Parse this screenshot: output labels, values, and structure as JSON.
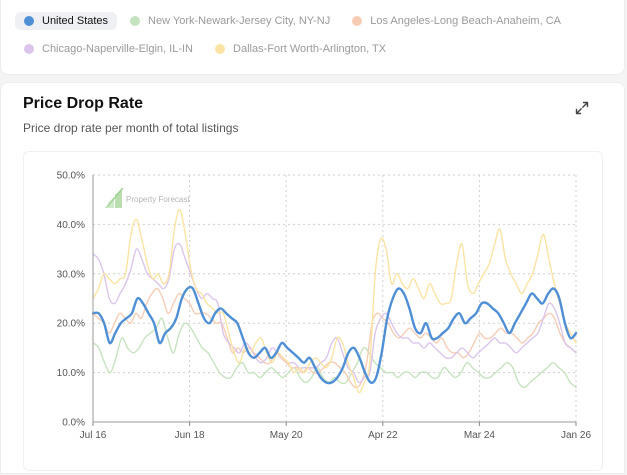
{
  "legend": {
    "items": [
      {
        "label": "United States",
        "color": "#4f8fd6",
        "active": true
      },
      {
        "label": "New York-Newark-Jersey City, NY-NJ",
        "color": "#c5e3bf",
        "active": false
      },
      {
        "label": "Los Angeles-Long Beach-Anaheim, CA",
        "color": "#f6cdb4",
        "active": false
      },
      {
        "label": "Chicago-Naperville-Elgin, IL-IN",
        "color": "#dcc5ec",
        "active": false
      },
      {
        "label": "Dallas-Fort Worth-Arlington, TX",
        "color": "#fbe3a3",
        "active": false
      }
    ]
  },
  "panel": {
    "title": "Price Drop Rate",
    "subtitle": "Price drop rate per month of total listings",
    "expand_icon": "expand-icon"
  },
  "watermark": "Property Forecast",
  "chart_data": {
    "type": "line",
    "ylim": [
      0,
      50
    ],
    "yticks": [
      "0.0%",
      "10.0%",
      "20.0%",
      "30.0%",
      "40.0%",
      "50.0%"
    ],
    "xticks": [
      "Jul 16",
      "Jun 18",
      "May 20",
      "Apr 22",
      "Mar 24",
      "Jan 26"
    ],
    "x_start": "Jul 16",
    "x_end": "Jan 26",
    "grid": true,
    "legend_position": "top",
    "series": [
      {
        "name": "New York-Newark-Jersey City, NY-NJ",
        "color": "#c5e3bf",
        "values": [
          16,
          15,
          12,
          10,
          13,
          17,
          15,
          14,
          15,
          17,
          18,
          19,
          21,
          17,
          14,
          18,
          20,
          19,
          17,
          15,
          14,
          12,
          10,
          9,
          9,
          11,
          12,
          10,
          10,
          9,
          10,
          11,
          10,
          9,
          10,
          11,
          9,
          8,
          9,
          11,
          9,
          8,
          9,
          8,
          8,
          10,
          12,
          15,
          14,
          12,
          11,
          10,
          10,
          9,
          10,
          10,
          9,
          10,
          10,
          9,
          9,
          11,
          10,
          9,
          10,
          12,
          11,
          10,
          9,
          9,
          10,
          11,
          12,
          11,
          8,
          7,
          8,
          9,
          10,
          11,
          12,
          11,
          10,
          8,
          7
        ]
      },
      {
        "name": "Los Angeles-Long Beach-Anaheim, CA",
        "color": "#f6cdb4",
        "values": [
          22,
          21,
          20,
          18,
          20,
          22,
          21,
          20,
          22,
          21,
          24,
          26,
          27,
          25,
          22,
          24,
          26,
          25,
          24,
          22,
          22,
          22,
          21,
          20,
          20,
          17,
          14,
          15,
          14,
          15,
          14,
          13,
          12,
          12,
          14,
          13,
          12,
          11,
          11,
          10,
          11,
          10,
          10,
          11,
          12,
          12,
          11,
          10,
          8,
          7,
          8,
          12,
          20,
          22,
          21,
          20,
          18,
          17,
          18,
          19,
          18,
          17,
          18,
          17,
          16,
          17,
          15,
          14,
          14,
          13,
          14,
          16,
          18,
          17,
          17,
          18,
          19,
          18,
          18,
          17,
          16,
          17,
          18,
          20,
          21,
          22,
          21,
          18,
          16,
          15,
          14
        ]
      },
      {
        "name": "Chicago-Naperville-Elgin, IL-IN",
        "color": "#dcc5ec",
        "values": [
          34,
          33,
          30,
          25,
          24,
          26,
          28,
          31,
          35,
          33,
          30,
          29,
          28,
          27,
          29,
          35,
          36,
          33,
          30,
          27,
          25,
          26,
          25,
          24,
          18,
          16,
          15,
          14,
          16,
          15,
          13,
          12,
          13,
          15,
          14,
          13,
          12,
          12,
          11,
          11,
          11,
          11,
          12,
          13,
          16,
          17,
          14,
          11,
          10,
          8,
          9,
          10,
          18,
          21,
          22,
          20,
          18,
          17,
          17,
          16,
          16,
          15,
          16,
          15,
          14,
          13,
          13,
          14,
          15,
          14,
          13,
          14,
          15,
          16,
          17,
          16,
          16,
          15,
          14,
          15,
          16,
          17,
          18,
          21,
          24,
          23,
          20,
          16,
          15,
          14
        ]
      },
      {
        "name": "Dallas-Fort Worth-Arlington, TX",
        "color": "#fbe3a3",
        "values": [
          25,
          27,
          30,
          29,
          28,
          29,
          30,
          38,
          41,
          37,
          32,
          29,
          30,
          28,
          30,
          39,
          43,
          38,
          31,
          27,
          26,
          24,
          23,
          22,
          22,
          18,
          14,
          12,
          15,
          14,
          16,
          17,
          14,
          12,
          14,
          13,
          12,
          10,
          11,
          10,
          12,
          13,
          12,
          11,
          13,
          17,
          16,
          12,
          9,
          6,
          8,
          12,
          30,
          37,
          35,
          28,
          30,
          28,
          27,
          29,
          27,
          25,
          28,
          26,
          24,
          24,
          25,
          32,
          36,
          28,
          26,
          28,
          30,
          32,
          36,
          39,
          33,
          30,
          28,
          26,
          28,
          30,
          34,
          38,
          33,
          28,
          24,
          20,
          18,
          16
        ]
      },
      {
        "name": "United States",
        "color": "#4f8fd6",
        "values": [
          22,
          22,
          20,
          16,
          18,
          20,
          21,
          22,
          25,
          24,
          22,
          20,
          16,
          18,
          19,
          21,
          25,
          27,
          27,
          24,
          21,
          20,
          22,
          23,
          22,
          21,
          20,
          17,
          14,
          13,
          14,
          15,
          13,
          14,
          16,
          15,
          14,
          13,
          12,
          13,
          11,
          9,
          8,
          8,
          9,
          11,
          14,
          15,
          13,
          10,
          8,
          9,
          14,
          21,
          25,
          27,
          26,
          23,
          19,
          18,
          20,
          17,
          17,
          18,
          19,
          21,
          22,
          20,
          21,
          22,
          24,
          24,
          23,
          22,
          20,
          18,
          20,
          22,
          24,
          26,
          25,
          24,
          26,
          27,
          25,
          20,
          17,
          18
        ]
      }
    ]
  }
}
